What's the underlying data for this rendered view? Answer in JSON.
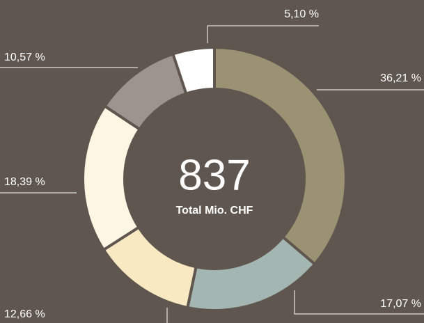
{
  "chart_data": {
    "type": "donut",
    "values": [
      36.21,
      17.07,
      12.66,
      18.39,
      10.57,
      5.1
    ],
    "value_labels": [
      "36,21 %",
      "17,07 %",
      "12,66 %",
      "18,39 %",
      "10,57 %",
      "5,10 %"
    ],
    "colors": [
      "#9a9272",
      "#a4b6b2",
      "#f9e9c2",
      "#fdf6e3",
      "#9c958f",
      "#ffffff"
    ],
    "total": 837,
    "total_label": "Total Mio. CHF"
  }
}
